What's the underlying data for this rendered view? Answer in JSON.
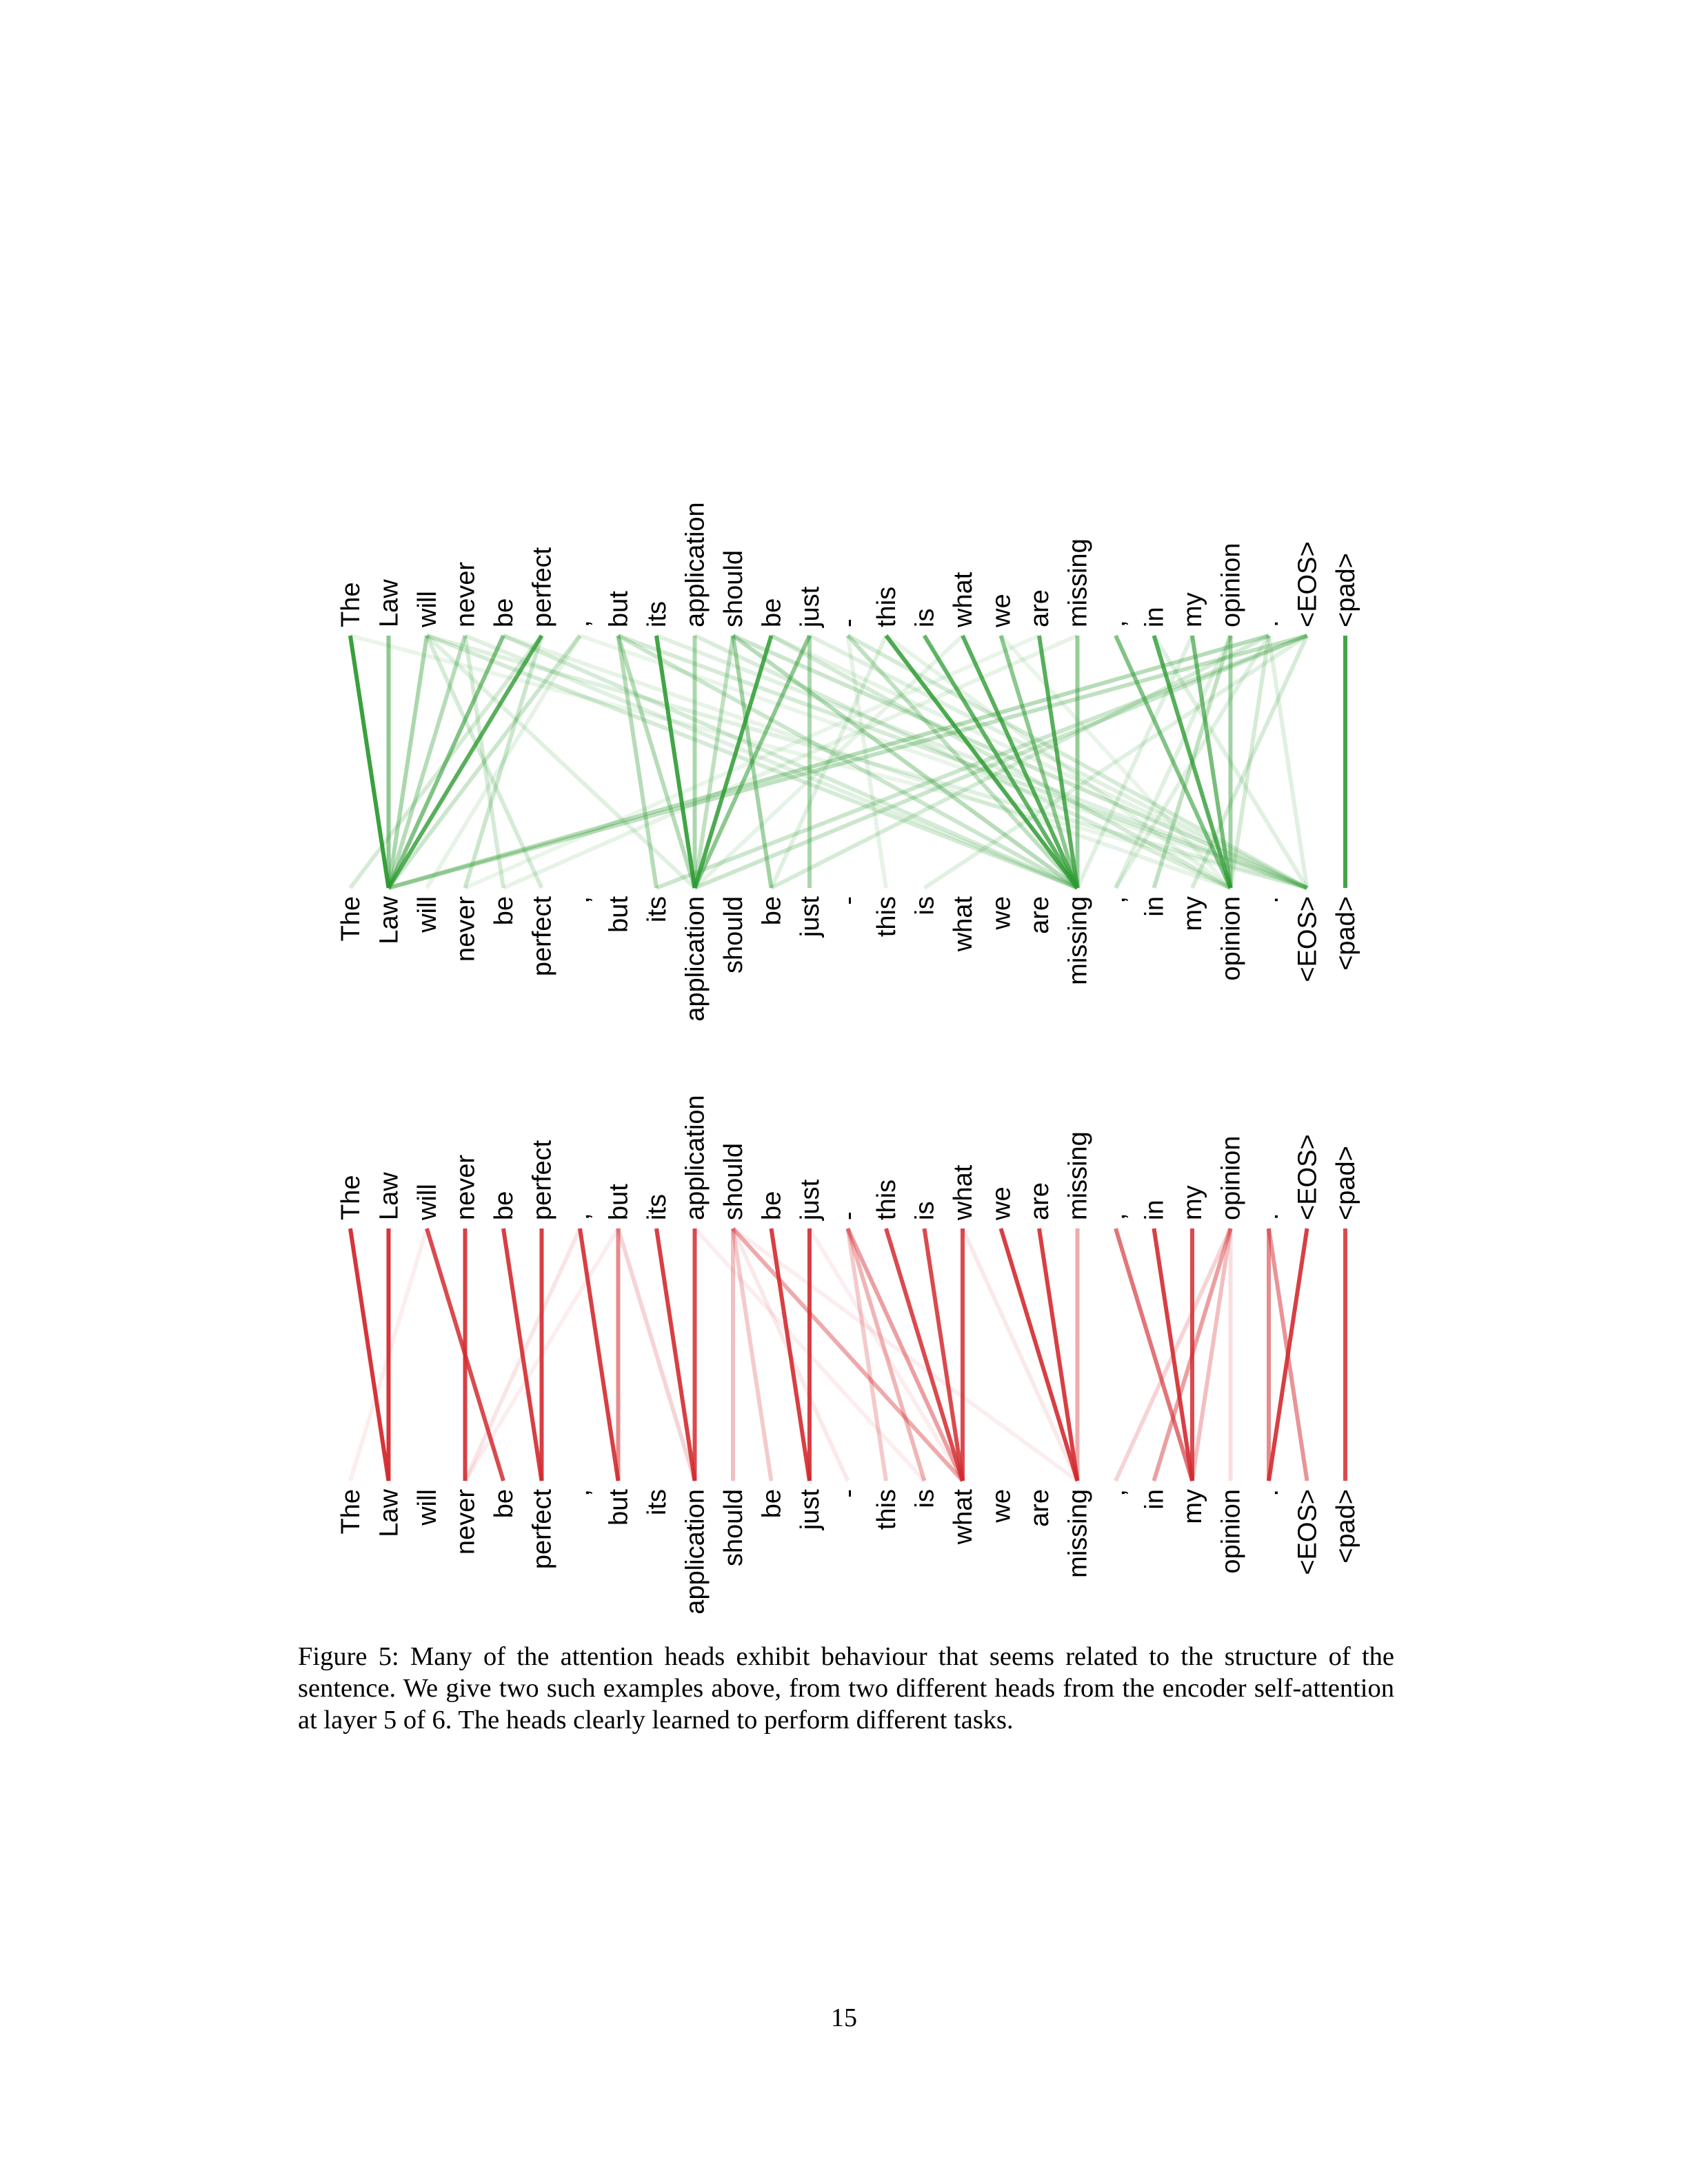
{
  "figures": [
    {
      "id": "green",
      "color": "#2e9b33",
      "tokens": [
        "The",
        "Law",
        "will",
        "never",
        "be",
        "perfect",
        ",",
        "but",
        "its",
        "application",
        "should",
        "be",
        "just",
        "-",
        "this",
        "is",
        "what",
        "we",
        "are",
        "missing",
        ",",
        "in",
        "my",
        "opinion",
        ".",
        "<EOS>",
        "<pad>"
      ],
      "edges": [
        [
          0,
          1,
          0.95
        ],
        [
          1,
          1,
          0.55
        ],
        [
          2,
          1,
          0.4
        ],
        [
          3,
          1,
          0.35
        ],
        [
          4,
          1,
          0.6
        ],
        [
          5,
          1,
          0.8
        ],
        [
          6,
          1,
          0.25
        ],
        [
          2,
          5,
          0.2
        ],
        [
          3,
          4,
          0.2
        ],
        [
          2,
          9,
          0.15
        ],
        [
          2,
          19,
          0.2
        ],
        [
          3,
          19,
          0.15
        ],
        [
          4,
          19,
          0.2
        ],
        [
          2,
          25,
          0.15
        ],
        [
          0,
          25,
          0.1
        ],
        [
          5,
          3,
          0.25
        ],
        [
          5,
          0,
          0.2
        ],
        [
          6,
          2,
          0.12
        ],
        [
          7,
          8,
          0.35
        ],
        [
          7,
          19,
          0.25
        ],
        [
          8,
          9,
          0.9
        ],
        [
          7,
          9,
          0.35
        ],
        [
          7,
          25,
          0.2
        ],
        [
          9,
          9,
          0.4
        ],
        [
          10,
          9,
          0.3
        ],
        [
          10,
          11,
          0.45
        ],
        [
          10,
          19,
          0.35
        ],
        [
          10,
          25,
          0.25
        ],
        [
          11,
          9,
          0.85
        ],
        [
          12,
          9,
          0.55
        ],
        [
          12,
          12,
          0.4
        ],
        [
          11,
          23,
          0.2
        ],
        [
          12,
          25,
          0.15
        ],
        [
          13,
          19,
          0.3
        ],
        [
          13,
          25,
          0.2
        ],
        [
          14,
          19,
          0.85
        ],
        [
          15,
          19,
          0.75
        ],
        [
          16,
          19,
          0.8
        ],
        [
          17,
          19,
          0.55
        ],
        [
          18,
          19,
          0.8
        ],
        [
          19,
          19,
          0.5
        ],
        [
          13,
          14,
          0.12
        ],
        [
          14,
          11,
          0.15
        ],
        [
          20,
          23,
          0.6
        ],
        [
          21,
          23,
          0.8
        ],
        [
          22,
          23,
          0.65
        ],
        [
          23,
          23,
          0.45
        ],
        [
          23,
          21,
          0.3
        ],
        [
          23,
          20,
          0.15
        ],
        [
          24,
          23,
          0.2
        ],
        [
          24,
          20,
          0.15
        ],
        [
          25,
          22,
          0.2
        ],
        [
          25,
          9,
          0.25
        ],
        [
          24,
          1,
          0.35
        ],
        [
          25,
          1,
          0.3
        ],
        [
          25,
          8,
          0.25
        ],
        [
          24,
          11,
          0.2
        ],
        [
          25,
          15,
          0.15
        ],
        [
          22,
          19,
          0.15
        ],
        [
          21,
          25,
          0.15
        ],
        [
          24,
          25,
          0.15
        ],
        [
          26,
          26,
          0.9
        ],
        [
          4,
          23,
          0.12
        ],
        [
          6,
          25,
          0.1
        ],
        [
          8,
          25,
          0.15
        ],
        [
          9,
          23,
          0.18
        ],
        [
          11,
          25,
          0.12
        ],
        [
          16,
          9,
          0.12
        ],
        [
          18,
          3,
          0.1
        ],
        [
          19,
          4,
          0.12
        ],
        [
          17,
          23,
          0.1
        ],
        [
          14,
          23,
          0.12
        ]
      ]
    },
    {
      "id": "red",
      "color": "#d42a2f",
      "tokens": [
        "The",
        "Law",
        "will",
        "never",
        "be",
        "perfect",
        ",",
        "but",
        "its",
        "application",
        "should",
        "be",
        "just",
        "-",
        "this",
        "is",
        "what",
        "we",
        "are",
        "missing",
        ",",
        "in",
        "my",
        "opinion",
        ".",
        "<EOS>",
        "<pad>"
      ],
      "edges": [
        [
          0,
          1,
          0.95
        ],
        [
          1,
          1,
          0.95
        ],
        [
          2,
          4,
          0.85
        ],
        [
          3,
          3,
          0.9
        ],
        [
          4,
          5,
          0.9
        ],
        [
          5,
          5,
          0.9
        ],
        [
          6,
          7,
          0.9
        ],
        [
          7,
          7,
          0.55
        ],
        [
          8,
          9,
          0.9
        ],
        [
          9,
          9,
          0.85
        ],
        [
          10,
          10,
          0.3
        ],
        [
          10,
          11,
          0.25
        ],
        [
          10,
          16,
          0.4
        ],
        [
          7,
          9,
          0.2
        ],
        [
          11,
          12,
          0.9
        ],
        [
          12,
          12,
          0.9
        ],
        [
          13,
          16,
          0.45
        ],
        [
          13,
          15,
          0.35
        ],
        [
          13,
          14,
          0.25
        ],
        [
          14,
          16,
          0.85
        ],
        [
          15,
          16,
          0.85
        ],
        [
          16,
          16,
          0.85
        ],
        [
          17,
          19,
          0.9
        ],
        [
          18,
          19,
          0.9
        ],
        [
          19,
          19,
          0.4
        ],
        [
          20,
          22,
          0.65
        ],
        [
          21,
          22,
          0.9
        ],
        [
          22,
          22,
          0.85
        ],
        [
          23,
          22,
          0.3
        ],
        [
          23,
          21,
          0.45
        ],
        [
          23,
          20,
          0.2
        ],
        [
          23,
          23,
          0.15
        ],
        [
          24,
          24,
          0.55
        ],
        [
          25,
          24,
          0.9
        ],
        [
          24,
          25,
          0.5
        ],
        [
          26,
          26,
          0.85
        ],
        [
          2,
          0,
          0.08
        ],
        [
          6,
          3,
          0.12
        ],
        [
          7,
          3,
          0.08
        ],
        [
          10,
          13,
          0.1
        ],
        [
          10,
          19,
          0.08
        ],
        [
          12,
          16,
          0.08
        ],
        [
          16,
          19,
          0.1
        ],
        [
          9,
          15,
          0.08
        ]
      ]
    }
  ],
  "caption": "Figure 5: Many of the attention heads exhibit behaviour that seems related to the structure of the sentence. We give two such examples above, from two different heads from the encoder self-attention at layer 5 of 6. The heads clearly learned to perform different tasks.",
  "page_number": "15"
}
